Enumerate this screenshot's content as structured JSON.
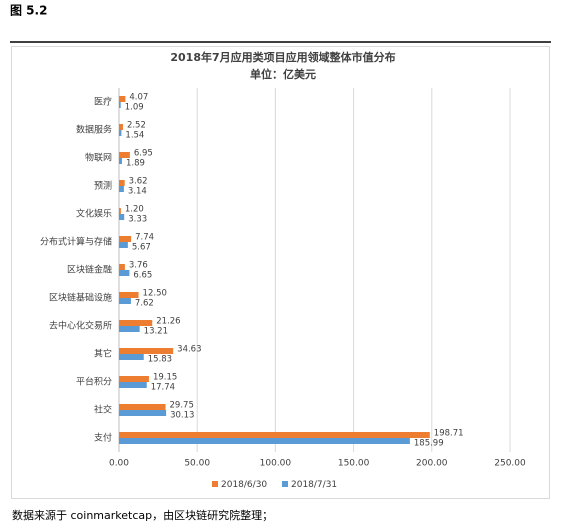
{
  "header": {
    "title": "图 5.2"
  },
  "chart_data": {
    "type": "bar",
    "orientation": "horizontal",
    "title": "2018年7月应用类项目应用领域整体市值分布",
    "subtitle": "单位：亿美元",
    "categories": [
      "医疗",
      "数据服务",
      "物联网",
      "预测",
      "文化娱乐",
      "分布式计算与存储",
      "区块链金融",
      "区块链基础设施",
      "去中心化交易所",
      "其它",
      "平台积分",
      "社交",
      "支付"
    ],
    "series": [
      {
        "name": "2018/6/30",
        "color": "#ED7D31",
        "values": [
          4.07,
          2.52,
          6.95,
          3.62,
          1.2,
          7.74,
          3.76,
          12.5,
          21.26,
          34.63,
          19.15,
          29.75,
          198.71
        ],
        "value_labels": [
          "4.07",
          "2.52",
          "6.95",
          "3.62",
          "1.20",
          "7.74",
          "3.76",
          "12.50",
          "21.26",
          "34.63",
          "19.15",
          "29.75",
          "198.71"
        ]
      },
      {
        "name": "2018/7/31",
        "color": "#5B9BD5",
        "values": [
          1.09,
          1.54,
          1.89,
          3.14,
          3.33,
          5.67,
          6.65,
          7.62,
          13.21,
          15.83,
          17.74,
          30.13,
          185.99
        ],
        "value_labels": [
          "1.09",
          "1.54",
          "1.89",
          "3.14",
          "3.33",
          "5.67",
          "6.65",
          "7.62",
          "13.21",
          "15.83",
          "17.74",
          "30.13",
          "185.99"
        ]
      }
    ],
    "xlim": [
      0,
      250
    ],
    "xticks": [
      {
        "value": 0,
        "label": "0.00"
      },
      {
        "value": 50,
        "label": "50.00"
      },
      {
        "value": 100,
        "label": "100.00"
      },
      {
        "value": 150,
        "label": "150.00"
      },
      {
        "value": 200,
        "label": "200.00"
      },
      {
        "value": 250,
        "label": "250.00"
      }
    ],
    "grid": true,
    "legend": "bottom"
  },
  "footer": {
    "text": "数据来源于 coinmarketcap，由区块链研究院整理；"
  }
}
